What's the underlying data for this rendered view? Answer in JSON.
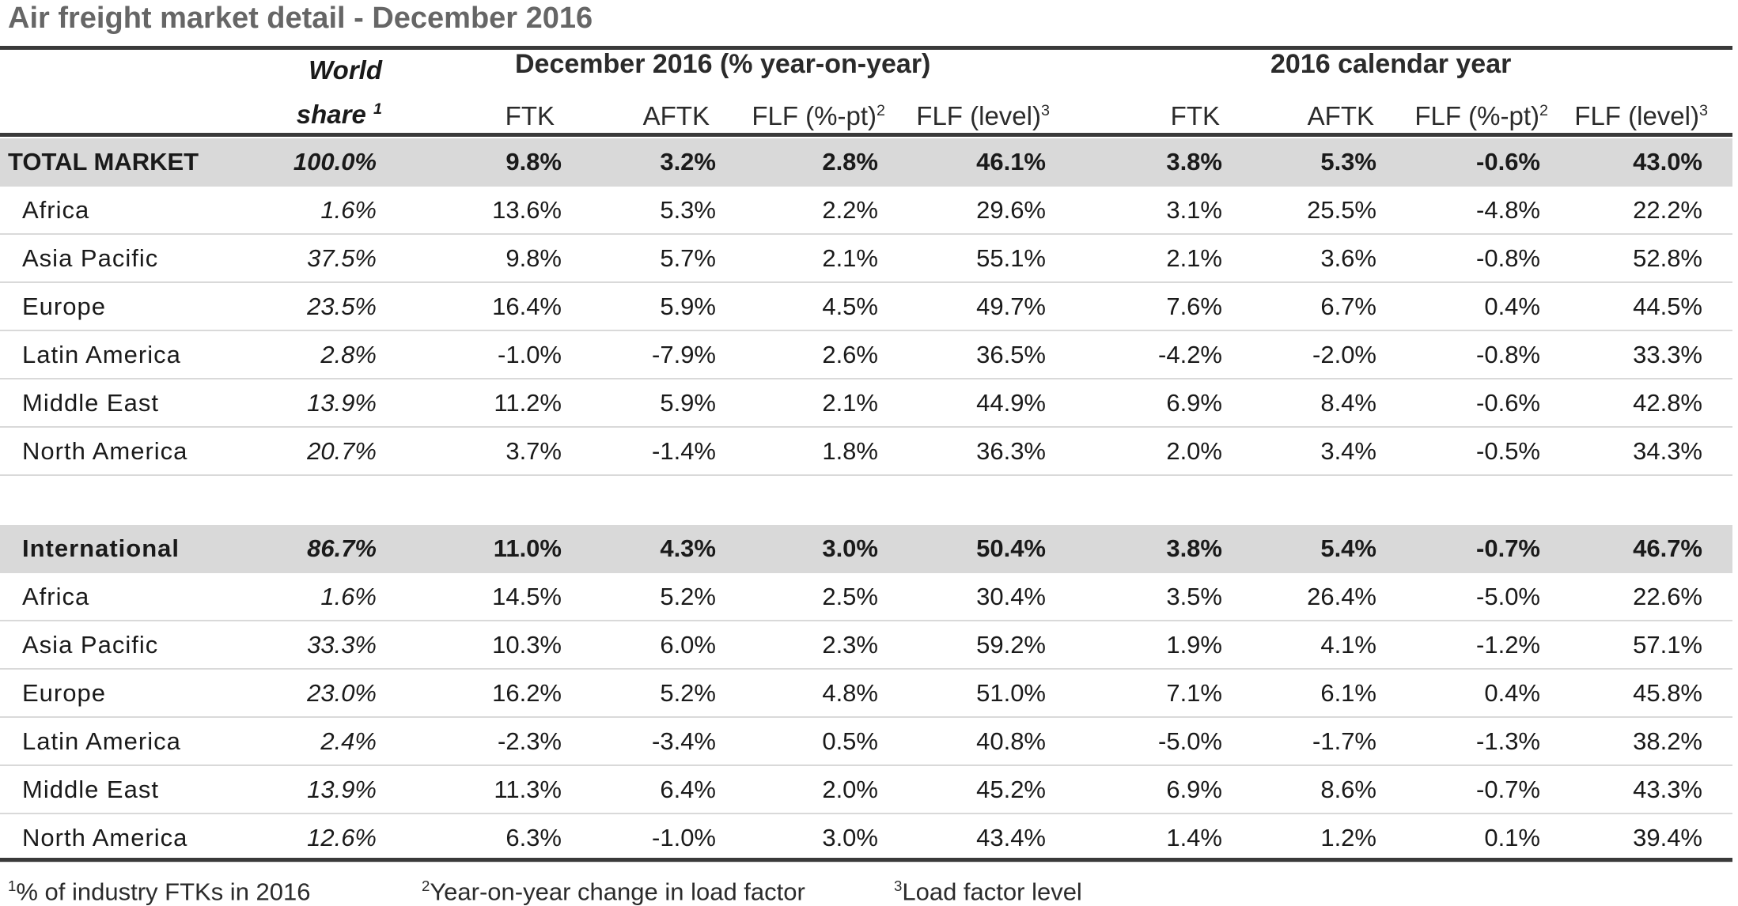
{
  "title": "Air freight market detail - December 2016",
  "header": {
    "world_share_line1": "World",
    "world_share_line2": "share",
    "world_share_note": "1",
    "group_december": "December 2016 (% year-on-year)",
    "group_year": "2016 calendar year",
    "columns": {
      "ftk": "FTK",
      "aftk": "AFTK",
      "flf_pt": "FLF (%-pt)",
      "flf_pt_note": "2",
      "flf_level": "FLF (level)",
      "flf_level_note": "3"
    }
  },
  "table": {
    "total": [
      {
        "label": "TOTAL MARKET",
        "share": "100.0%",
        "d_ftk": "9.8%",
        "d_aftk": "3.2%",
        "d_flfpt": "2.8%",
        "d_flflvl": "46.1%",
        "y_ftk": "3.8%",
        "y_aftk": "5.3%",
        "y_flfpt": "-0.6%",
        "y_flflvl": "43.0%"
      },
      {
        "label": "Africa",
        "share": "1.6%",
        "d_ftk": "13.6%",
        "d_aftk": "5.3%",
        "d_flfpt": "2.2%",
        "d_flflvl": "29.6%",
        "y_ftk": "3.1%",
        "y_aftk": "25.5%",
        "y_flfpt": "-4.8%",
        "y_flflvl": "22.2%"
      },
      {
        "label": "Asia Pacific",
        "share": "37.5%",
        "d_ftk": "9.8%",
        "d_aftk": "5.7%",
        "d_flfpt": "2.1%",
        "d_flflvl": "55.1%",
        "y_ftk": "2.1%",
        "y_aftk": "3.6%",
        "y_flfpt": "-0.8%",
        "y_flflvl": "52.8%"
      },
      {
        "label": "Europe",
        "share": "23.5%",
        "d_ftk": "16.4%",
        "d_aftk": "5.9%",
        "d_flfpt": "4.5%",
        "d_flflvl": "49.7%",
        "y_ftk": "7.6%",
        "y_aftk": "6.7%",
        "y_flfpt": "0.4%",
        "y_flflvl": "44.5%"
      },
      {
        "label": "Latin America",
        "share": "2.8%",
        "d_ftk": "-1.0%",
        "d_aftk": "-7.9%",
        "d_flfpt": "2.6%",
        "d_flflvl": "36.5%",
        "y_ftk": "-4.2%",
        "y_aftk": "-2.0%",
        "y_flfpt": "-0.8%",
        "y_flflvl": "33.3%"
      },
      {
        "label": "Middle East",
        "share": "13.9%",
        "d_ftk": "11.2%",
        "d_aftk": "5.9%",
        "d_flfpt": "2.1%",
        "d_flflvl": "44.9%",
        "y_ftk": "6.9%",
        "y_aftk": "8.4%",
        "y_flfpt": "-0.6%",
        "y_flflvl": "42.8%"
      },
      {
        "label": "North America",
        "share": "20.7%",
        "d_ftk": "3.7%",
        "d_aftk": "-1.4%",
        "d_flfpt": "1.8%",
        "d_flflvl": "36.3%",
        "y_ftk": "2.0%",
        "y_aftk": "3.4%",
        "y_flfpt": "-0.5%",
        "y_flflvl": "34.3%"
      }
    ],
    "international": [
      {
        "label": "International",
        "share": "86.7%",
        "d_ftk": "11.0%",
        "d_aftk": "4.3%",
        "d_flfpt": "3.0%",
        "d_flflvl": "50.4%",
        "y_ftk": "3.8%",
        "y_aftk": "5.4%",
        "y_flfpt": "-0.7%",
        "y_flflvl": "46.7%"
      },
      {
        "label": "Africa",
        "share": "1.6%",
        "d_ftk": "14.5%",
        "d_aftk": "5.2%",
        "d_flfpt": "2.5%",
        "d_flflvl": "30.4%",
        "y_ftk": "3.5%",
        "y_aftk": "26.4%",
        "y_flfpt": "-5.0%",
        "y_flflvl": "22.6%"
      },
      {
        "label": "Asia Pacific",
        "share": "33.3%",
        "d_ftk": "10.3%",
        "d_aftk": "6.0%",
        "d_flfpt": "2.3%",
        "d_flflvl": "59.2%",
        "y_ftk": "1.9%",
        "y_aftk": "4.1%",
        "y_flfpt": "-1.2%",
        "y_flflvl": "57.1%"
      },
      {
        "label": "Europe",
        "share": "23.0%",
        "d_ftk": "16.2%",
        "d_aftk": "5.2%",
        "d_flfpt": "4.8%",
        "d_flflvl": "51.0%",
        "y_ftk": "7.1%",
        "y_aftk": "6.1%",
        "y_flfpt": "0.4%",
        "y_flflvl": "45.8%"
      },
      {
        "label": "Latin America",
        "share": "2.4%",
        "d_ftk": "-2.3%",
        "d_aftk": "-3.4%",
        "d_flfpt": "0.5%",
        "d_flflvl": "40.8%",
        "y_ftk": "-5.0%",
        "y_aftk": "-1.7%",
        "y_flfpt": "-1.3%",
        "y_flflvl": "38.2%"
      },
      {
        "label": "Middle East",
        "share": "13.9%",
        "d_ftk": "11.3%",
        "d_aftk": "6.4%",
        "d_flfpt": "2.0%",
        "d_flflvl": "45.2%",
        "y_ftk": "6.9%",
        "y_aftk": "8.6%",
        "y_flfpt": "-0.7%",
        "y_flflvl": "43.3%"
      },
      {
        "label": "North America",
        "share": "12.6%",
        "d_ftk": "6.3%",
        "d_aftk": "-1.0%",
        "d_flfpt": "3.0%",
        "d_flflvl": "43.4%",
        "y_ftk": "1.4%",
        "y_aftk": "1.2%",
        "y_flfpt": "0.1%",
        "y_flflvl": "39.4%"
      }
    ]
  },
  "footnotes": [
    {
      "mark": "1",
      "text": "% of industry FTKs in 2016"
    },
    {
      "mark": "2",
      "text": "Year-on-year change in load factor"
    },
    {
      "mark": "3",
      "text": "Load factor level"
    }
  ],
  "colors": {
    "band": "#d9d9d9",
    "rule": "#3a3a3a",
    "title": "#666666"
  }
}
